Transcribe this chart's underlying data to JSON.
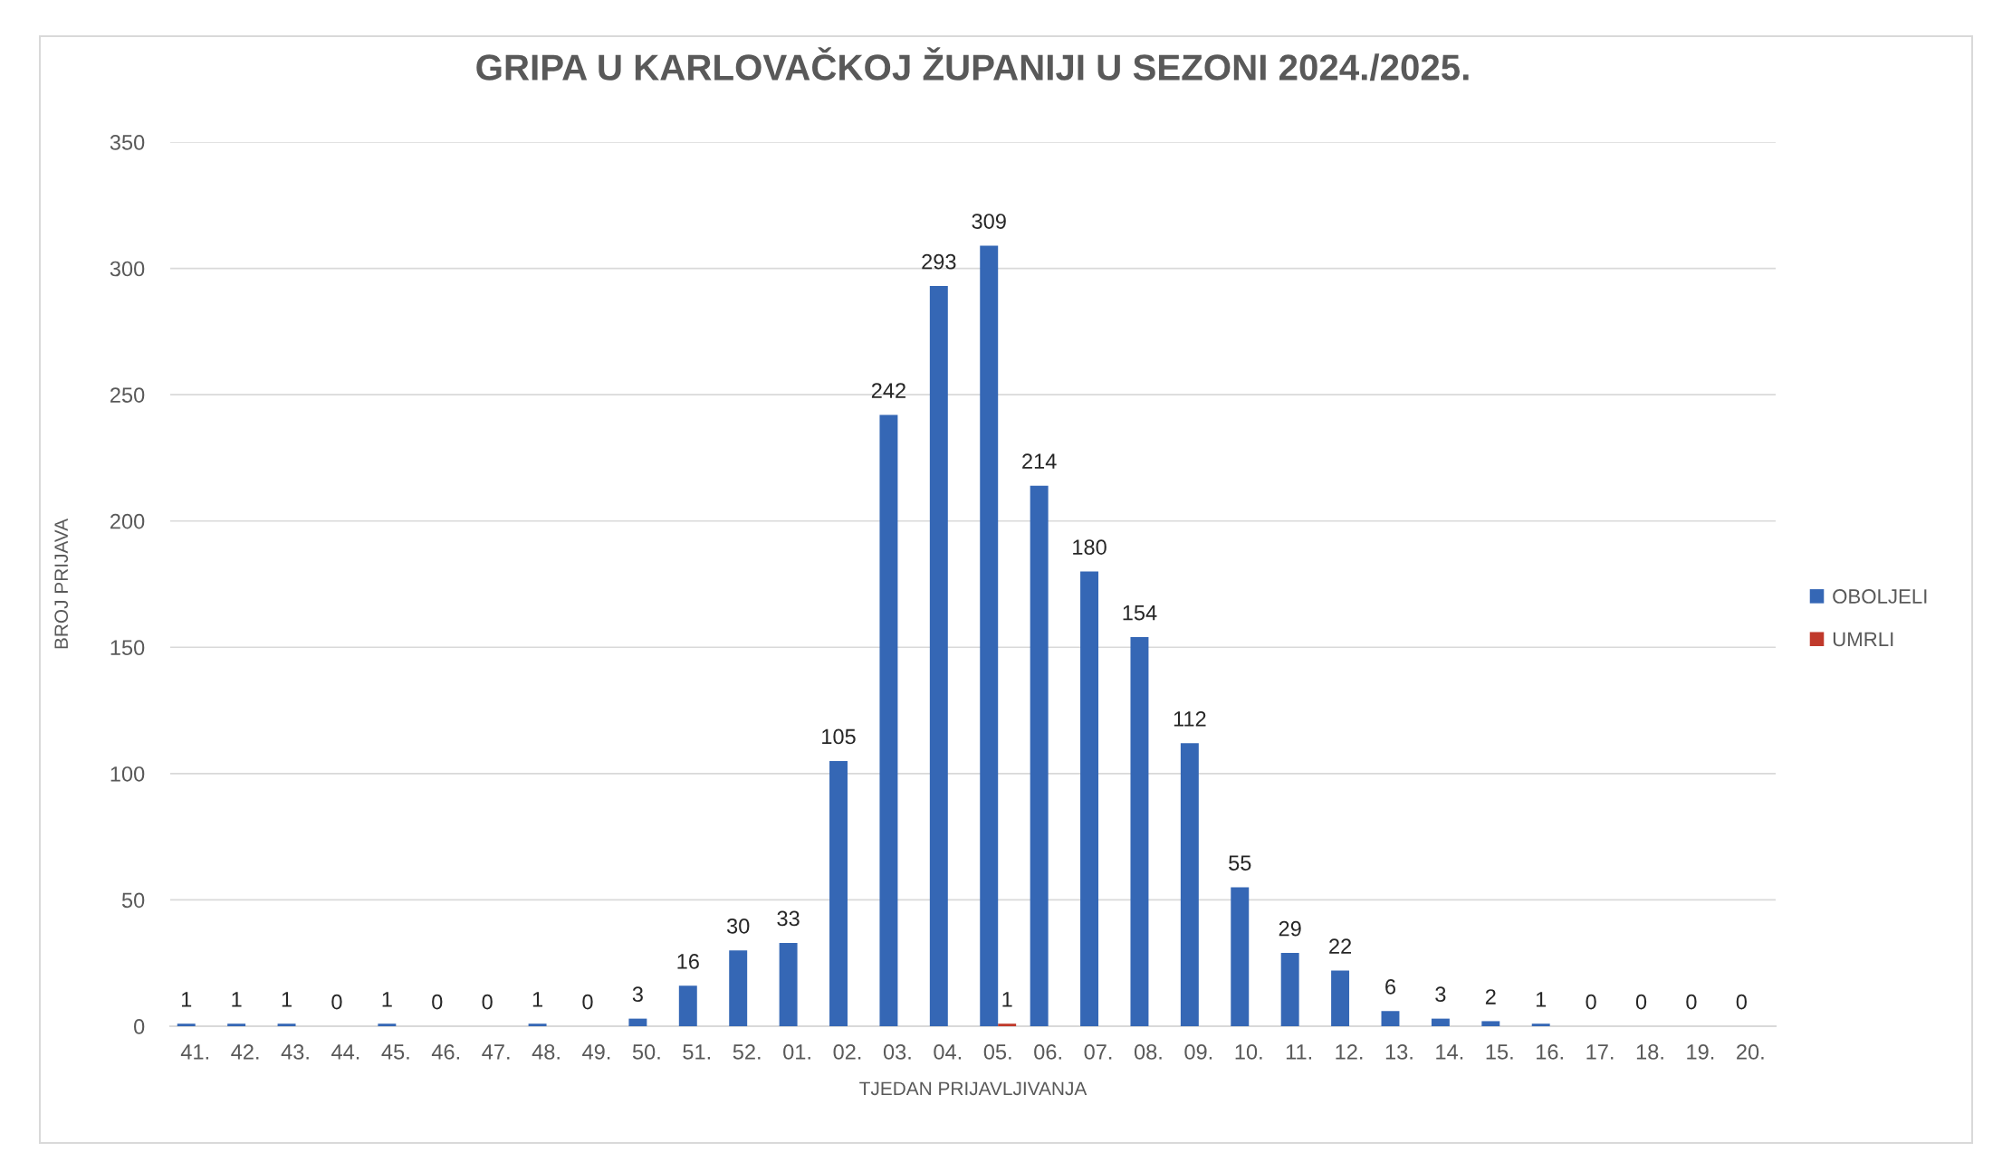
{
  "chart_data": {
    "type": "bar",
    "title": "GRIPA U KARLOVAČKOJ ŽUPANIJI U SEZONI 2024./2025.",
    "xlabel": "TJEDAN PRIJAVLJIVANJA",
    "ylabel": "BROJ PRIJAVA",
    "categories": [
      "41.",
      "42.",
      "43.",
      "44.",
      "45.",
      "46.",
      "47.",
      "48.",
      "49.",
      "50.",
      "51.",
      "52.",
      "01.",
      "02.",
      "03.",
      "04.",
      "05.",
      "06.",
      "07.",
      "08.",
      "09.",
      "10.",
      "11.",
      "12.",
      "13.",
      "14.",
      "15.",
      "16.",
      "17.",
      "18.",
      "19.",
      "20."
    ],
    "series": [
      {
        "name": "OBOLJELI",
        "color": "#3567b5",
        "values": [
          1,
          1,
          1,
          0,
          1,
          0,
          0,
          1,
          0,
          3,
          16,
          30,
          33,
          105,
          242,
          293,
          309,
          214,
          180,
          154,
          112,
          55,
          29,
          22,
          6,
          3,
          2,
          1,
          0,
          0,
          0,
          0
        ]
      },
      {
        "name": "UMRLI",
        "color": "#c0392b",
        "values": [
          null,
          null,
          null,
          null,
          null,
          null,
          null,
          null,
          null,
          null,
          null,
          null,
          null,
          null,
          null,
          null,
          1,
          null,
          null,
          null,
          null,
          null,
          null,
          null,
          null,
          null,
          null,
          null,
          null,
          null,
          null,
          null
        ]
      }
    ],
    "ylim": [
      0,
      350
    ],
    "yticks": [
      0,
      50,
      100,
      150,
      200,
      250,
      300,
      350
    ],
    "grid": "y",
    "legend": "right",
    "data_labels": true
  }
}
